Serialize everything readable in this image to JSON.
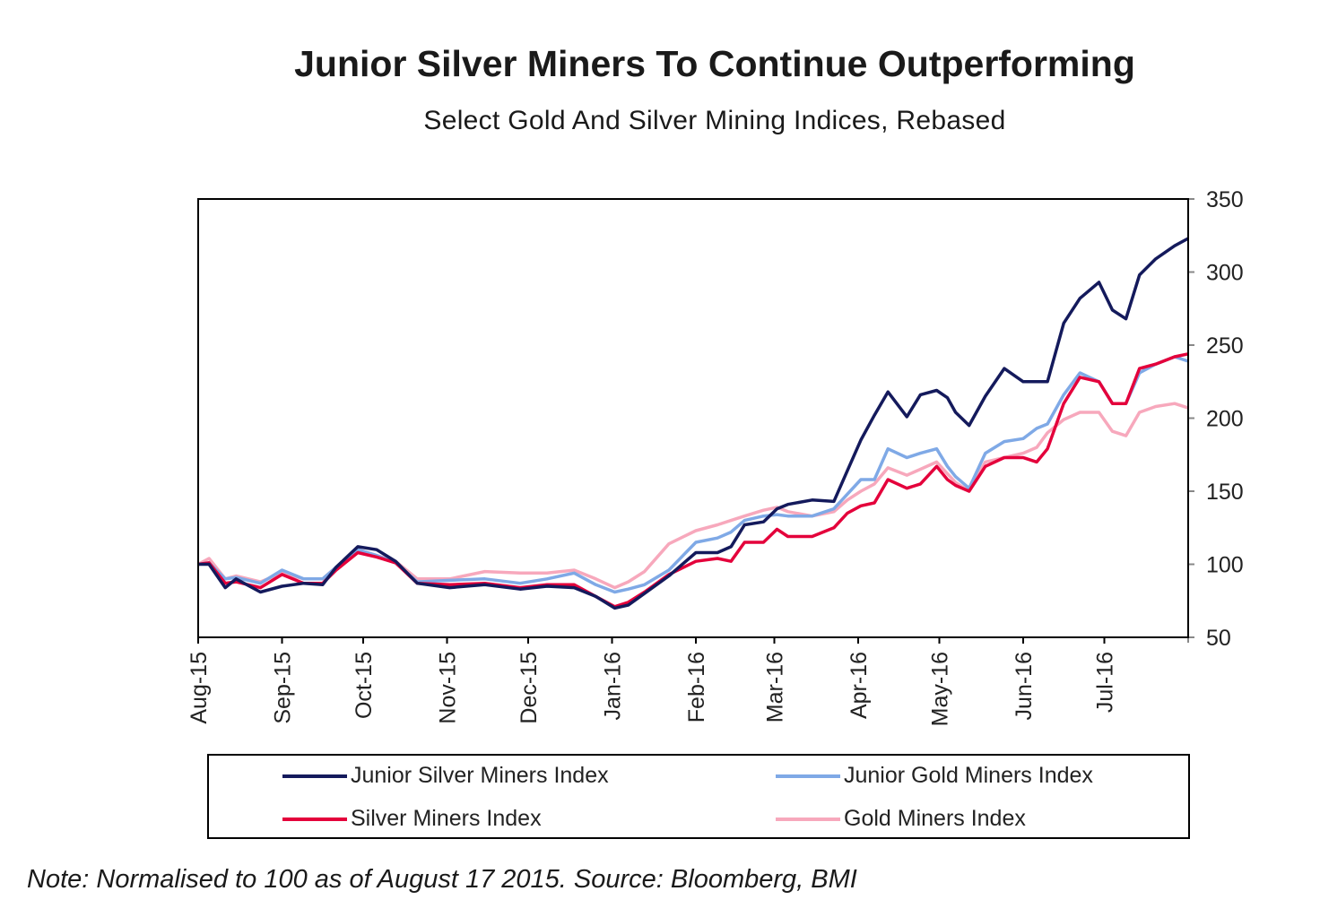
{
  "chart_data": {
    "type": "line",
    "title": "Junior Silver Miners To Continue Outperforming",
    "subtitle": "Select Gold And Silver Mining Indices, Rebased",
    "xlabel": "",
    "ylabel": "",
    "ylim": [
      50,
      350
    ],
    "yticks": [
      50,
      100,
      150,
      200,
      250,
      300,
      350
    ],
    "y_axis_side": "right",
    "xlim": [
      "2015-08-17",
      "2016-08-17"
    ],
    "xticks": [
      {
        "date": "2015-08-17",
        "label": "Aug-15"
      },
      {
        "date": "2015-09-17",
        "label": "Sep-15"
      },
      {
        "date": "2015-10-17",
        "label": "Oct-15"
      },
      {
        "date": "2015-11-17",
        "label": "Nov-15"
      },
      {
        "date": "2015-12-17",
        "label": "Dec-15"
      },
      {
        "date": "2016-01-17",
        "label": "Jan-16"
      },
      {
        "date": "2016-02-17",
        "label": "Feb-16"
      },
      {
        "date": "2016-03-17",
        "label": "Mar-16"
      },
      {
        "date": "2016-04-17",
        "label": "Apr-16"
      },
      {
        "date": "2016-05-17",
        "label": "May-16"
      },
      {
        "date": "2016-06-17",
        "label": "Jun-16"
      },
      {
        "date": "2016-07-17",
        "label": "Jul-16"
      }
    ],
    "grid": false,
    "legend_position": "bottom",
    "x": [
      "2015-08-17",
      "2015-08-21",
      "2015-08-27",
      "2015-08-31",
      "2015-09-09",
      "2015-09-17",
      "2015-09-25",
      "2015-10-02",
      "2015-10-07",
      "2015-10-15",
      "2015-10-22",
      "2015-10-29",
      "2015-11-06",
      "2015-11-18",
      "2015-12-01",
      "2015-12-14",
      "2015-12-24",
      "2016-01-03",
      "2016-01-11",
      "2016-01-18",
      "2016-01-23",
      "2016-01-29",
      "2016-02-07",
      "2016-02-17",
      "2016-02-25",
      "2016-03-01",
      "2016-03-06",
      "2016-03-13",
      "2016-03-18",
      "2016-03-22",
      "2016-03-31",
      "2016-04-08",
      "2016-04-13",
      "2016-04-18",
      "2016-04-23",
      "2016-04-28",
      "2016-05-05",
      "2016-05-10",
      "2016-05-16",
      "2016-05-20",
      "2016-05-23",
      "2016-05-28",
      "2016-06-03",
      "2016-06-10",
      "2016-06-17",
      "2016-06-22",
      "2016-06-26",
      "2016-07-02",
      "2016-07-08",
      "2016-07-15",
      "2016-07-20",
      "2016-07-25",
      "2016-07-30",
      "2016-08-05",
      "2016-08-12",
      "2016-08-17"
    ],
    "series": [
      {
        "name": "Gold Miners Index",
        "color": "#f7a8bc",
        "values": [
          100,
          104,
          90,
          92,
          88,
          94,
          90,
          90,
          98,
          110,
          106,
          102,
          90,
          90,
          95,
          94,
          94,
          96,
          90,
          84,
          88,
          95,
          114,
          123,
          127,
          130,
          133,
          137,
          139,
          136,
          133,
          136,
          144,
          150,
          155,
          166,
          161,
          165,
          170,
          162,
          156,
          150,
          170,
          173,
          176,
          180,
          190,
          199,
          204,
          204,
          191,
          188,
          204,
          208,
          210,
          207
        ]
      },
      {
        "name": "Junior Gold Miners Index",
        "color": "#7fa9e6",
        "values": [
          100,
          101,
          90,
          91,
          87,
          96,
          90,
          90,
          98,
          110,
          106,
          101,
          88,
          89,
          90,
          87,
          90,
          94,
          86,
          81,
          83,
          86,
          96,
          115,
          118,
          122,
          130,
          133,
          134,
          133,
          133,
          138,
          148,
          158,
          158,
          179,
          173,
          176,
          179,
          167,
          160,
          152,
          176,
          184,
          186,
          193,
          196,
          216,
          231,
          225,
          210,
          210,
          231,
          237,
          242,
          239
        ]
      },
      {
        "name": "Silver Miners Index",
        "color": "#e4003b",
        "values": [
          100,
          101,
          87,
          88,
          84,
          93,
          87,
          87,
          96,
          108,
          105,
          101,
          87,
          86,
          87,
          84,
          86,
          86,
          78,
          71,
          74,
          81,
          93,
          102,
          104,
          102,
          115,
          115,
          124,
          119,
          119,
          125,
          135,
          140,
          142,
          158,
          152,
          155,
          167,
          158,
          154,
          150,
          167,
          173,
          173,
          170,
          179,
          210,
          228,
          225,
          210,
          210,
          234,
          237,
          242,
          244
        ]
      },
      {
        "name": "Junior Silver Miners Index",
        "color": "#141a5c",
        "values": [
          100,
          100,
          84,
          90,
          81,
          85,
          87,
          86,
          98,
          112,
          110,
          102,
          87,
          84,
          86,
          83,
          85,
          84,
          78,
          70,
          72,
          80,
          92,
          108,
          108,
          112,
          127,
          129,
          138,
          141,
          144,
          143,
          164,
          185,
          202,
          218,
          201,
          216,
          219,
          214,
          204,
          195,
          215,
          234,
          225,
          225,
          225,
          265,
          282,
          293,
          274,
          268,
          298,
          309,
          318,
          323
        ]
      }
    ]
  },
  "legend": [
    {
      "label": "Junior Silver Miners Index",
      "color": "#141a5c"
    },
    {
      "label": "Junior Gold Miners Index",
      "color": "#7fa9e6"
    },
    {
      "label": "Silver Miners Index",
      "color": "#e4003b"
    },
    {
      "label": "Gold Miners Index",
      "color": "#f7a8bc"
    }
  ],
  "note": "Note: Normalised to 100 as of August 17 2015. Source: Bloomberg, BMI"
}
